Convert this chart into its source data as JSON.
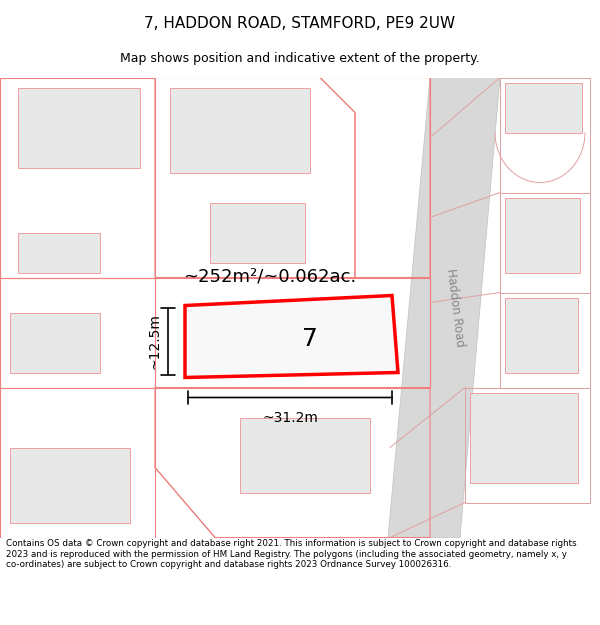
{
  "title": "7, HADDON ROAD, STAMFORD, PE9 2UW",
  "subtitle": "Map shows position and indicative extent of the property.",
  "footer": "Contains OS data © Crown copyright and database right 2021. This information is subject to Crown copyright and database rights 2023 and is reproduced with the permission of HM Land Registry. The polygons (including the associated geometry, namely x, y co-ordinates) are subject to Crown copyright and database rights 2023 Ordnance Survey 100026316.",
  "area_label": "~252m²/~0.062ac.",
  "width_label": "~31.2m",
  "height_label": "~12.5m",
  "plot_number": "7",
  "road_label": "Haddon Road",
  "bg_color": "#ffffff",
  "plot_edge_color": "#ff0000",
  "boundary_color": "#f08080",
  "building_fill": "#e8e8e8",
  "road_color": "#d0d0d0",
  "road_line_color": "#b0b0b0"
}
